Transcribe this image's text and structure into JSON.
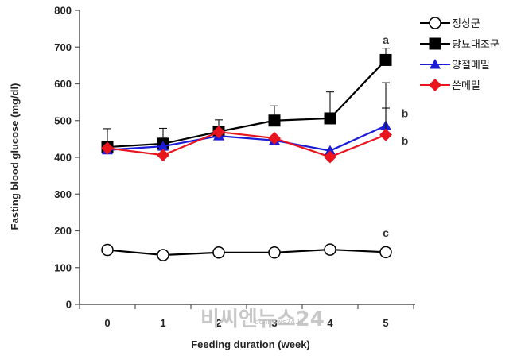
{
  "chart_data": {
    "type": "line",
    "xlabel": "Feeding duration (week)",
    "ylabel": "Fasting blood glucose (mg/dl)",
    "x": [
      0,
      1,
      2,
      3,
      4,
      5
    ],
    "x_tick_labels": [
      "0",
      "1",
      "2",
      "3",
      "4",
      "5"
    ],
    "ylim": [
      0,
      800
    ],
    "y_ticks": [
      0,
      100,
      200,
      300,
      400,
      500,
      600,
      700,
      800
    ],
    "grid": false,
    "legend_position": "top-right",
    "series": [
      {
        "name": "정상군",
        "values": [
          148,
          134,
          141,
          141,
          149,
          142
        ],
        "errors": [
          0,
          0,
          0,
          0,
          0,
          0
        ],
        "color": "#000000",
        "marker": "open-circle"
      },
      {
        "name": "당뇨대조군",
        "values": [
          428,
          437,
          470,
          500,
          506,
          665
        ],
        "errors": [
          50,
          42,
          32,
          40,
          72,
          32
        ],
        "color": "#000000",
        "marker": "square"
      },
      {
        "name": "양절메밀",
        "values": [
          420,
          430,
          458,
          446,
          418,
          486
        ],
        "errors": [
          0,
          25,
          0,
          0,
          0,
          117
        ],
        "color": "#1c1cd8",
        "marker": "triangle"
      },
      {
        "name": "쓴메밀",
        "values": [
          425,
          406,
          469,
          452,
          401,
          461
        ],
        "errors": [
          0,
          0,
          0,
          0,
          0,
          73
        ],
        "color": "#e8141e",
        "marker": "diamond"
      }
    ],
    "annotations": [
      {
        "text": "a",
        "x": 5,
        "y": 720
      },
      {
        "text": "b",
        "x": 5,
        "y": 520
      },
      {
        "text": "b",
        "x": 5,
        "y": 445
      },
      {
        "text": "c",
        "x": 5,
        "y": 195
      }
    ]
  },
  "watermark": {
    "main": "비씨엔뉴스24",
    "sub": "bcnnews24.kr"
  }
}
